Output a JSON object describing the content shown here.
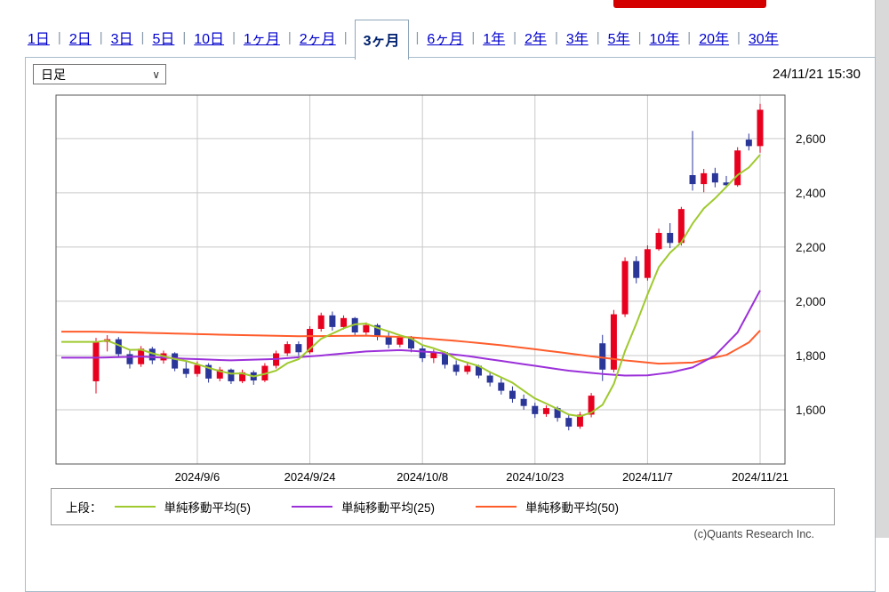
{
  "banner": {
    "color": "#d40000"
  },
  "tabs": {
    "items": [
      {
        "label": "1日",
        "selected": false
      },
      {
        "label": "2日",
        "selected": false
      },
      {
        "label": "3日",
        "selected": false
      },
      {
        "label": "5日",
        "selected": false
      },
      {
        "label": "10日",
        "selected": false
      },
      {
        "label": "1ヶ月",
        "selected": false
      },
      {
        "label": "2ヶ月",
        "selected": false
      },
      {
        "label": "3ヶ月",
        "selected": true
      },
      {
        "label": "6ヶ月",
        "selected": false
      },
      {
        "label": "1年",
        "selected": false
      },
      {
        "label": "2年",
        "selected": false
      },
      {
        "label": "3年",
        "selected": false
      },
      {
        "label": "5年",
        "selected": false
      },
      {
        "label": "10年",
        "selected": false
      },
      {
        "label": "20年",
        "selected": false
      },
      {
        "label": "30年",
        "selected": false
      }
    ]
  },
  "toolbar": {
    "chart_type_value": "日足",
    "timestamp": "24/11/21 15:30"
  },
  "legend": {
    "prefix": "上段：",
    "items": [
      {
        "label": "単純移動平均(5)",
        "color": "#9fc92e"
      },
      {
        "label": "単純移動平均(25)",
        "color": "#9b30d9"
      },
      {
        "label": "単純移動平均(50)",
        "color": "#ff5c2b"
      }
    ]
  },
  "footer": {
    "copyright": "(c)Quants Research Inc."
  },
  "chart_data": {
    "type": "candlestick",
    "title": "",
    "x_ticks": [
      "2024/9/6",
      "2024/9/24",
      "2024/10/8",
      "2024/10/23",
      "2024/11/7",
      "2024/11/21"
    ],
    "x_tick_indices": [
      9,
      19,
      29,
      39,
      49,
      59
    ],
    "y_ticks": [
      1600,
      1800,
      2000,
      2200,
      2400,
      2600
    ],
    "ylim": [
      1400,
      2760
    ],
    "grid": true,
    "grid_color": "#c9c9c9",
    "frame_color": "#555555",
    "up_color": "#e8001f",
    "down_color": "#2b3699",
    "sma5_color": "#9fc92e",
    "sma25_color": "#9b30d9",
    "sma50_color": "#ff5c2b",
    "dates": [
      "2024/8/26",
      "2024/8/27",
      "2024/8/28",
      "2024/8/29",
      "2024/8/30",
      "2024/9/2",
      "2024/9/3",
      "2024/9/4",
      "2024/9/5",
      "2024/9/6",
      "2024/9/9",
      "2024/9/10",
      "2024/9/11",
      "2024/9/12",
      "2024/9/13",
      "2024/9/17",
      "2024/9/18",
      "2024/9/19",
      "2024/9/20",
      "2024/9/24",
      "2024/9/25",
      "2024/9/26",
      "2024/9/27",
      "2024/9/30",
      "2024/10/1",
      "2024/10/2",
      "2024/10/3",
      "2024/10/4",
      "2024/10/7",
      "2024/10/8",
      "2024/10/9",
      "2024/10/10",
      "2024/10/11",
      "2024/10/15",
      "2024/10/16",
      "2024/10/17",
      "2024/10/18",
      "2024/10/21",
      "2024/10/22",
      "2024/10/23",
      "2024/10/24",
      "2024/10/25",
      "2024/10/28",
      "2024/10/29",
      "2024/10/30",
      "2024/10/31",
      "2024/11/1",
      "2024/11/5",
      "2024/11/6",
      "2024/11/7",
      "2024/11/8",
      "2024/11/11",
      "2024/11/12",
      "2024/11/13",
      "2024/11/14",
      "2024/11/15",
      "2024/11/18",
      "2024/11/19",
      "2024/11/20",
      "2024/11/21"
    ],
    "candles": [
      [
        1705,
        1865,
        1660,
        1850
      ],
      [
        1850,
        1875,
        1815,
        1860
      ],
      [
        1860,
        1868,
        1795,
        1805
      ],
      [
        1805,
        1818,
        1752,
        1768
      ],
      [
        1768,
        1835,
        1758,
        1825
      ],
      [
        1825,
        1832,
        1768,
        1782
      ],
      [
        1782,
        1818,
        1770,
        1808
      ],
      [
        1808,
        1812,
        1742,
        1752
      ],
      [
        1752,
        1778,
        1718,
        1732
      ],
      [
        1732,
        1778,
        1722,
        1765
      ],
      [
        1765,
        1772,
        1700,
        1715
      ],
      [
        1715,
        1758,
        1705,
        1748
      ],
      [
        1748,
        1752,
        1695,
        1705
      ],
      [
        1705,
        1748,
        1698,
        1738
      ],
      [
        1738,
        1745,
        1692,
        1708
      ],
      [
        1708,
        1772,
        1702,
        1762
      ],
      [
        1762,
        1818,
        1752,
        1808
      ],
      [
        1808,
        1852,
        1798,
        1842
      ],
      [
        1842,
        1852,
        1798,
        1812
      ],
      [
        1812,
        1908,
        1806,
        1898
      ],
      [
        1898,
        1958,
        1888,
        1948
      ],
      [
        1948,
        1962,
        1892,
        1905
      ],
      [
        1905,
        1948,
        1896,
        1938
      ],
      [
        1938,
        1942,
        1872,
        1885
      ],
      [
        1885,
        1922,
        1876,
        1912
      ],
      [
        1912,
        1918,
        1856,
        1870
      ],
      [
        1870,
        1886,
        1826,
        1840
      ],
      [
        1840,
        1876,
        1830,
        1866
      ],
      [
        1866,
        1872,
        1812,
        1826
      ],
      [
        1826,
        1836,
        1776,
        1790
      ],
      [
        1790,
        1822,
        1772,
        1812
      ],
      [
        1812,
        1816,
        1752,
        1766
      ],
      [
        1766,
        1782,
        1726,
        1740
      ],
      [
        1740,
        1772,
        1730,
        1762
      ],
      [
        1762,
        1766,
        1716,
        1726
      ],
      [
        1726,
        1742,
        1686,
        1700
      ],
      [
        1700,
        1716,
        1656,
        1670
      ],
      [
        1670,
        1686,
        1626,
        1640
      ],
      [
        1640,
        1656,
        1600,
        1614
      ],
      [
        1614,
        1626,
        1570,
        1584
      ],
      [
        1584,
        1616,
        1574,
        1606
      ],
      [
        1606,
        1612,
        1556,
        1570
      ],
      [
        1570,
        1582,
        1524,
        1538
      ],
      [
        1538,
        1592,
        1530,
        1582
      ],
      [
        1582,
        1662,
        1572,
        1652
      ],
      [
        1845,
        1876,
        1706,
        1748
      ],
      [
        1748,
        1968,
        1738,
        1952
      ],
      [
        1952,
        2162,
        1942,
        2148
      ],
      [
        2148,
        2166,
        2066,
        2086
      ],
      [
        2086,
        2206,
        2076,
        2192
      ],
      [
        2192,
        2268,
        2186,
        2252
      ],
      [
        2252,
        2288,
        2196,
        2215
      ],
      [
        2215,
        2348,
        2205,
        2340
      ],
      [
        2465,
        2628,
        2408,
        2432
      ],
      [
        2432,
        2488,
        2402,
        2472
      ],
      [
        2472,
        2492,
        2420,
        2438
      ],
      [
        2438,
        2462,
        2418,
        2428
      ],
      [
        2428,
        2568,
        2422,
        2556
      ],
      [
        2596,
        2618,
        2556,
        2572
      ],
      [
        2572,
        2728,
        2548,
        2706
      ]
    ],
    "sma25_points": [
      [
        0,
        1792
      ],
      [
        4,
        1796
      ],
      [
        8,
        1788
      ],
      [
        12,
        1782
      ],
      [
        16,
        1787
      ],
      [
        20,
        1800
      ],
      [
        24,
        1815
      ],
      [
        27,
        1820
      ],
      [
        30,
        1812
      ],
      [
        33,
        1798
      ],
      [
        36,
        1780
      ],
      [
        39,
        1762
      ],
      [
        42,
        1744
      ],
      [
        45,
        1732
      ],
      [
        47,
        1726
      ],
      [
        49,
        1727
      ],
      [
        51,
        1737
      ],
      [
        53,
        1756
      ],
      [
        55,
        1800
      ],
      [
        57,
        1885
      ],
      [
        59,
        2040
      ]
    ],
    "sma50_points": [
      [
        0,
        1888
      ],
      [
        6,
        1882
      ],
      [
        12,
        1876
      ],
      [
        18,
        1871
      ],
      [
        24,
        1873
      ],
      [
        28,
        1867
      ],
      [
        32,
        1854
      ],
      [
        36,
        1838
      ],
      [
        40,
        1818
      ],
      [
        44,
        1797
      ],
      [
        47,
        1782
      ],
      [
        50,
        1770
      ],
      [
        53,
        1774
      ],
      [
        56,
        1802
      ],
      [
        58,
        1848
      ],
      [
        59,
        1892
      ]
    ],
    "series_labels": [
      "単純移動平均(5)",
      "単純移動平均(25)",
      "単純移動平均(50)"
    ]
  }
}
